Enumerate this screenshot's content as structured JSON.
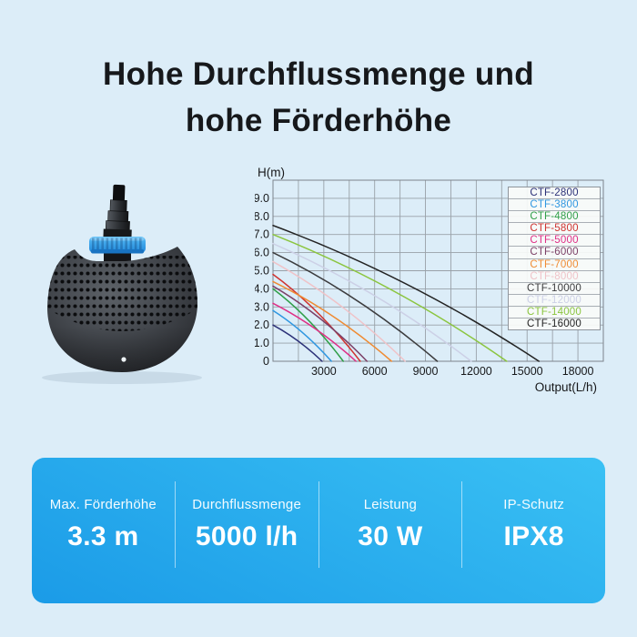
{
  "page": {
    "background_color": "#dcedf8"
  },
  "title": {
    "line1": "Hohe Durchflussmenge und",
    "line2": "hohe Förderhöhe"
  },
  "product": {
    "image_name": "pond-pump-photo",
    "accent_color": "#2f9ff0"
  },
  "chart_data": {
    "type": "line",
    "title": "",
    "xlabel": "Output(L/h)",
    "ylabel": "H(m)",
    "xlim": [
      0,
      19500
    ],
    "ylim": [
      0,
      10
    ],
    "x_ticks": [
      3000,
      6000,
      9000,
      12000,
      15000,
      18000
    ],
    "y_ticks": [
      9,
      8,
      7,
      6,
      5,
      4,
      3,
      2,
      1,
      0
    ],
    "y_tick_labels": [
      "9.0",
      "8.0",
      "7.0",
      "6.0",
      "5.0",
      "4.0",
      "3.0",
      "2.0",
      "1.0",
      "0"
    ],
    "grid": {
      "visible": true,
      "x_step": 1500,
      "y_step": 1,
      "color": "#99a1a8"
    },
    "legend_position": "top-right",
    "series": [
      {
        "name": "CTF-2800",
        "color": "#2c3178",
        "max_head_m": 2.0,
        "max_flow_lh": 2900
      },
      {
        "name": "CTF-3800",
        "color": "#2e96e0",
        "max_head_m": 2.8,
        "max_flow_lh": 3450
      },
      {
        "name": "CTF-4800",
        "color": "#2f9e48",
        "max_head_m": 4.0,
        "max_flow_lh": 4150
      },
      {
        "name": "CTF-5800",
        "color": "#cf3330",
        "max_head_m": 4.8,
        "max_flow_lh": 5150
      },
      {
        "name": "CTF-5000",
        "color": "#df2f86",
        "max_head_m": 3.2,
        "max_flow_lh": 4900
      },
      {
        "name": "CTF-6000",
        "color": "#7c4067",
        "max_head_m": 4.15,
        "max_flow_lh": 5550
      },
      {
        "name": "CTF-7000",
        "color": "#ef8b33",
        "max_head_m": 4.4,
        "max_flow_lh": 7000
      },
      {
        "name": "CTF-8000",
        "color": "#efc3c8",
        "max_head_m": 5.5,
        "max_flow_lh": 7800
      },
      {
        "name": "CTF-10000",
        "color": "#3c3c3e",
        "max_head_m": 6.0,
        "max_flow_lh": 9700
      },
      {
        "name": "CTF-12000",
        "color": "#ccd0e6",
        "max_head_m": 6.5,
        "max_flow_lh": 11700
      },
      {
        "name": "CTF-14000",
        "color": "#8bc53f",
        "max_head_m": 7.0,
        "max_flow_lh": 13800
      },
      {
        "name": "CTF-16000",
        "color": "#232323",
        "max_head_m": 7.5,
        "max_flow_lh": 15700
      }
    ]
  },
  "specs_bar": {
    "gradient_from": "#3ac1f4",
    "gradient_to": "#1b9be7",
    "items": [
      {
        "label": "Max. Förderhöhe",
        "value": "3.3 m"
      },
      {
        "label": "Durchflussmenge",
        "value": "5000 l/h"
      },
      {
        "label": "Leistung",
        "value": "30 W"
      },
      {
        "label": "IP-Schutz",
        "value": "IPX8"
      }
    ]
  }
}
